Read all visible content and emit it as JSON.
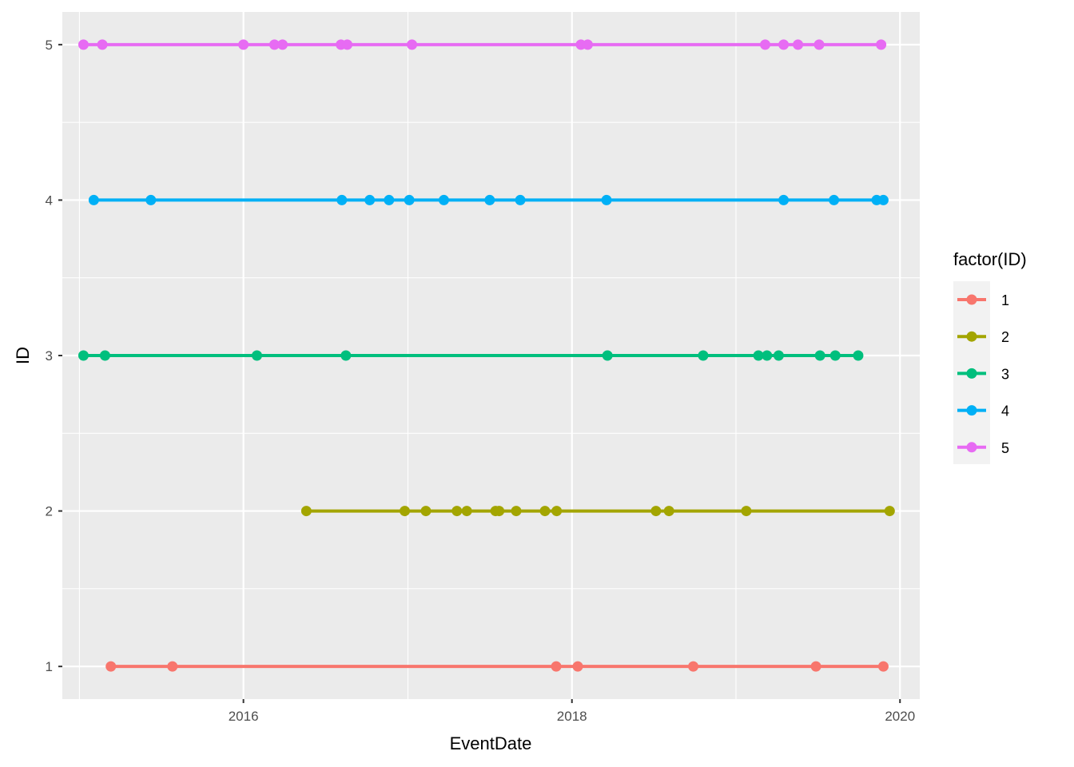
{
  "chart_data": {
    "type": "line",
    "xlabel": "EventDate",
    "ylabel": "ID",
    "x_axis_type": "date",
    "xlim": [
      "2014-11-24",
      "2020-02-14"
    ],
    "ylim": [
      0.79,
      5.21
    ],
    "x_ticks": [
      "2016",
      "2018",
      "2020"
    ],
    "x_tick_dates": [
      "2016-01-01",
      "2018-01-01",
      "2020-01-01"
    ],
    "y_ticks": [
      "1",
      "2",
      "3",
      "4",
      "5"
    ],
    "y_tick_values": [
      1,
      2,
      3,
      4,
      5
    ],
    "grid": true,
    "markers": true,
    "legend": {
      "title": "factor(ID)",
      "position": "right",
      "entries": [
        "1",
        "2",
        "3",
        "4",
        "5"
      ]
    },
    "series": [
      {
        "name": "1",
        "color": "#F8766D",
        "y": 1,
        "x": [
          "2015-03-12",
          "2015-07-27",
          "2017-11-27",
          "2018-01-14",
          "2018-09-28",
          "2019-06-28",
          "2019-11-25"
        ]
      },
      {
        "name": "2",
        "color": "#A3A500",
        "y": 2,
        "x": [
          "2016-05-20",
          "2016-12-25",
          "2017-02-10",
          "2017-04-20",
          "2017-05-12",
          "2017-07-15",
          "2017-07-23",
          "2017-08-30",
          "2017-11-02",
          "2017-11-28",
          "2018-07-07",
          "2018-08-05",
          "2019-01-24",
          "2019-12-09"
        ]
      },
      {
        "name": "3",
        "color": "#00BF7D",
        "y": 3,
        "x": [
          "2015-01-10",
          "2015-02-27",
          "2016-01-31",
          "2016-08-16",
          "2018-03-21",
          "2018-10-20",
          "2019-02-20",
          "2019-03-11",
          "2019-04-06",
          "2019-07-07",
          "2019-08-10",
          "2019-09-30"
        ]
      },
      {
        "name": "4",
        "color": "#00B0F6",
        "y": 4,
        "x": [
          "2015-02-02",
          "2015-06-09",
          "2016-08-07",
          "2016-10-08",
          "2016-11-20",
          "2017-01-04",
          "2017-03-22",
          "2017-07-02",
          "2017-09-08",
          "2018-03-19",
          "2019-04-17",
          "2019-08-07",
          "2019-11-10",
          "2019-11-25"
        ]
      },
      {
        "name": "5",
        "color": "#E76BF3",
        "y": 5,
        "x": [
          "2015-01-10",
          "2015-02-21",
          "2016-01-01",
          "2016-03-10",
          "2016-03-28",
          "2016-08-05",
          "2016-08-19",
          "2017-01-10",
          "2018-01-21",
          "2018-02-05",
          "2019-03-07",
          "2019-04-17",
          "2019-05-19",
          "2019-07-05",
          "2019-11-20"
        ]
      }
    ]
  }
}
